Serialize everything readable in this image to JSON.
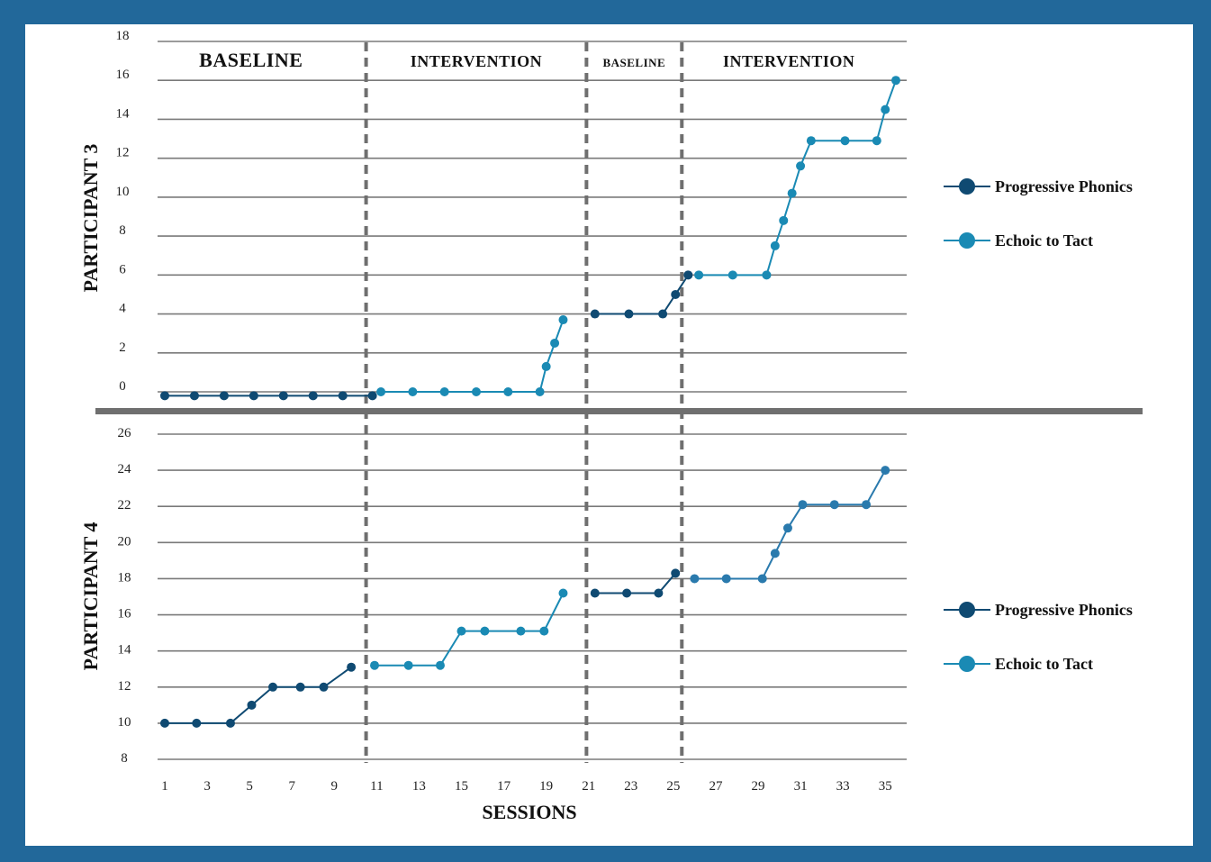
{
  "chart_data": [
    {
      "type": "line",
      "panel": "top",
      "ylabel": "PARTICIPANT 3",
      "xlabel": "",
      "ylim": [
        0,
        18
      ],
      "yticks": [
        "0",
        "2",
        "4",
        "6",
        "8",
        "10",
        "12",
        "14",
        "16",
        "18"
      ],
      "phases": [
        {
          "label": "BASELINE",
          "from": 1,
          "to": 10.5
        },
        {
          "label": "INTERVENTION",
          "from": 10.5,
          "to": 20.9
        },
        {
          "label": "BASELINE",
          "from": 20.9,
          "to": 25.4
        },
        {
          "label": "INTERVENTION",
          "from": 25.4,
          "to": 35.5
        }
      ],
      "phase_lines": [
        10.5,
        20.9,
        25.4
      ],
      "legend": {
        "position": "right",
        "entries": [
          "Progressive Phonics",
          "Echoic to Tact"
        ]
      },
      "series": [
        {
          "name": "Progressive Phonics",
          "color": "#0f4a72",
          "segments": [
            {
              "x": [
                1,
                2.4,
                3.8,
                5.2,
                6.6,
                8.0,
                9.4,
                10.8
              ],
              "y": [
                -0.2,
                -0.2,
                -0.2,
                -0.2,
                -0.2,
                -0.2,
                -0.2,
                -0.2
              ]
            },
            {
              "x": [
                21.3,
                22.9,
                24.5,
                25.1,
                25.7
              ],
              "y": [
                4,
                4,
                4,
                5,
                6
              ]
            }
          ]
        },
        {
          "name": "Echoic to Tact",
          "color": "#1a8ab4",
          "segments": [
            {
              "x": [
                11.2,
                12.7,
                14.2,
                15.7,
                17.2,
                18.7,
                19.0,
                19.4,
                19.8
              ],
              "y": [
                0,
                0,
                0,
                0,
                0,
                0,
                1.3,
                2.5,
                3.7
              ]
            },
            {
              "x": [
                26.2,
                27.8,
                29.4,
                29.8,
                30.2,
                30.6,
                31.0,
                31.5,
                33.1,
                34.6,
                35.0,
                35.5
              ],
              "y": [
                6,
                6,
                6,
                7.5,
                8.8,
                10.2,
                11.6,
                12.9,
                12.9,
                12.9,
                14.5,
                16
              ]
            }
          ]
        }
      ]
    },
    {
      "type": "line",
      "panel": "bottom",
      "ylabel": "PARTICIPANT 4",
      "xlabel": "SESSIONS",
      "ylim": [
        8,
        26
      ],
      "yticks": [
        "8",
        "10",
        "12",
        "14",
        "16",
        "18",
        "20",
        "22",
        "24",
        "26"
      ],
      "xticks": [
        "1",
        "3",
        "5",
        "7",
        "9",
        "11",
        "13",
        "15",
        "17",
        "19",
        "21",
        "23",
        "25",
        "27",
        "29",
        "31",
        "33",
        "35"
      ],
      "phase_lines": [
        10.5,
        20.9,
        25.4
      ],
      "legend": {
        "position": "right",
        "entries": [
          "Progressive Phonics",
          "Echoic to Tact"
        ]
      },
      "series": [
        {
          "name": "Progressive Phonics",
          "color": "#0f4a72",
          "segments": [
            {
              "x": [
                1,
                2.5,
                4.1,
                5.1,
                6.1,
                7.4,
                8.5,
                9.8
              ],
              "y": [
                10,
                10,
                10,
                11,
                12,
                12,
                12,
                13.1
              ]
            },
            {
              "x": [
                21.3,
                22.8,
                24.3,
                25.1
              ],
              "y": [
                17.2,
                17.2,
                17.2,
                18.3
              ]
            }
          ]
        },
        {
          "name": "Echoic to Tact",
          "color": "#1a8ab4",
          "segments": [
            {
              "x": [
                10.9,
                12.5,
                14.0,
                15.0,
                16.1,
                17.8,
                18.9,
                19.8
              ],
              "y": [
                13.2,
                13.2,
                13.2,
                15.1,
                15.1,
                15.1,
                15.1,
                17.2
              ]
            }
          ]
        },
        {
          "name": "",
          "color": "#2a7aad",
          "segments": [
            {
              "x": [
                26.0,
                27.5,
                29.2,
                29.8,
                30.4,
                31.1,
                32.6,
                34.1,
                35.0
              ],
              "y": [
                18,
                18,
                18,
                19.4,
                20.8,
                22.1,
                22.1,
                22.1,
                24
              ]
            }
          ]
        }
      ]
    }
  ],
  "legend_colors": {
    "progressive": "#0f4a72",
    "echoic": "#1a8ab4"
  }
}
